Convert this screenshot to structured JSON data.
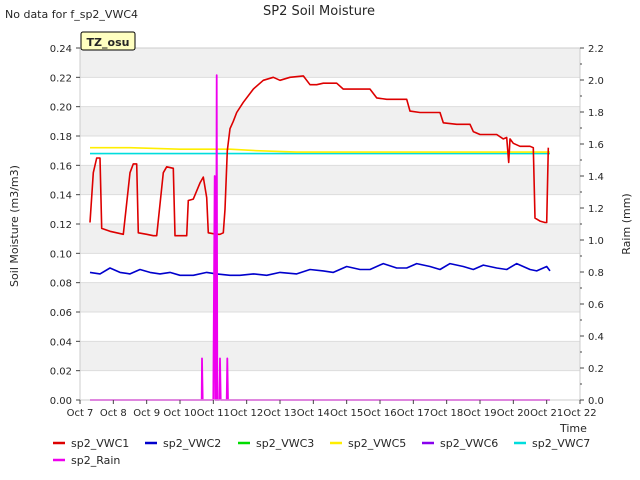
{
  "chart_data": {
    "type": "line",
    "title": "SP2 Soil Moisture",
    "note": "No data for f_sp2_VWC4",
    "badge": "TZ_osu",
    "xlabel": "Time",
    "ylabel_left": "Soil Moisture (m3/m3)",
    "ylabel_right": "Raim (mm)",
    "xlim": [
      0,
      15
    ],
    "ylim_left": [
      0,
      0.24
    ],
    "ylim_right": [
      0,
      2.2
    ],
    "x_ticks": [
      {
        "x": 0,
        "label": "Oct 7"
      },
      {
        "x": 1,
        "label": "Oct 8"
      },
      {
        "x": 2,
        "label": "Oct 9"
      },
      {
        "x": 3,
        "label": "Oct 10"
      },
      {
        "x": 4,
        "label": "Oct 11"
      },
      {
        "x": 5,
        "label": "Oct 12"
      },
      {
        "x": 6,
        "label": "Oct 13"
      },
      {
        "x": 7,
        "label": "Oct 14"
      },
      {
        "x": 8,
        "label": "Oct 15"
      },
      {
        "x": 9,
        "label": "Oct 16"
      },
      {
        "x": 10,
        "label": "Oct 17"
      },
      {
        "x": 11,
        "label": "Oct 18"
      },
      {
        "x": 12,
        "label": "Oct 19"
      },
      {
        "x": 13,
        "label": "Oct 20"
      },
      {
        "x": 14,
        "label": "Oct 21"
      },
      {
        "x": 15,
        "label": "Oct 22"
      }
    ],
    "y_ticks_left": [
      "0.00",
      "0.02",
      "0.04",
      "0.06",
      "0.08",
      "0.10",
      "0.12",
      "0.14",
      "0.16",
      "0.18",
      "0.20",
      "0.22",
      "0.24"
    ],
    "y_ticks_right": [
      "0.0",
      "0.2",
      "0.4",
      "0.6",
      "0.8",
      "1.0",
      "1.2",
      "1.4",
      "1.6",
      "1.8",
      "2.0",
      "2.2"
    ],
    "series": [
      {
        "name": "sp2_VWC1",
        "axis": "left",
        "color": "#dd0000",
        "points": [
          [
            0.3,
            0.121
          ],
          [
            0.4,
            0.155
          ],
          [
            0.5,
            0.165
          ],
          [
            0.6,
            0.165
          ],
          [
            0.65,
            0.117
          ],
          [
            0.9,
            0.115
          ],
          [
            1.1,
            0.114
          ],
          [
            1.3,
            0.113
          ],
          [
            1.5,
            0.155
          ],
          [
            1.6,
            0.161
          ],
          [
            1.7,
            0.161
          ],
          [
            1.75,
            0.114
          ],
          [
            2.0,
            0.113
          ],
          [
            2.2,
            0.112
          ],
          [
            2.3,
            0.112
          ],
          [
            2.5,
            0.155
          ],
          [
            2.6,
            0.159
          ],
          [
            2.8,
            0.158
          ],
          [
            2.85,
            0.112
          ],
          [
            3.1,
            0.112
          ],
          [
            3.2,
            0.112
          ],
          [
            3.25,
            0.136
          ],
          [
            3.4,
            0.137
          ],
          [
            3.6,
            0.148
          ],
          [
            3.7,
            0.152
          ],
          [
            3.8,
            0.138
          ],
          [
            3.85,
            0.114
          ],
          [
            4.1,
            0.113
          ],
          [
            4.2,
            0.113
          ],
          [
            4.3,
            0.114
          ],
          [
            4.35,
            0.13
          ],
          [
            4.42,
            0.17
          ],
          [
            4.5,
            0.185
          ],
          [
            4.6,
            0.19
          ],
          [
            4.7,
            0.196
          ],
          [
            4.9,
            0.203
          ],
          [
            5.2,
            0.212
          ],
          [
            5.5,
            0.218
          ],
          [
            5.8,
            0.22
          ],
          [
            6.0,
            0.218
          ],
          [
            6.3,
            0.22
          ],
          [
            6.7,
            0.221
          ],
          [
            6.9,
            0.215
          ],
          [
            7.1,
            0.215
          ],
          [
            7.3,
            0.216
          ],
          [
            7.7,
            0.216
          ],
          [
            7.9,
            0.212
          ],
          [
            8.3,
            0.212
          ],
          [
            8.7,
            0.212
          ],
          [
            8.9,
            0.206
          ],
          [
            9.2,
            0.205
          ],
          [
            9.5,
            0.205
          ],
          [
            9.8,
            0.205
          ],
          [
            9.9,
            0.197
          ],
          [
            10.2,
            0.196
          ],
          [
            10.5,
            0.196
          ],
          [
            10.8,
            0.196
          ],
          [
            10.9,
            0.189
          ],
          [
            11.3,
            0.188
          ],
          [
            11.7,
            0.188
          ],
          [
            11.8,
            0.183
          ],
          [
            12.0,
            0.181
          ],
          [
            12.3,
            0.181
          ],
          [
            12.5,
            0.181
          ],
          [
            12.7,
            0.178
          ],
          [
            12.8,
            0.179
          ],
          [
            12.86,
            0.162
          ],
          [
            12.9,
            0.178
          ],
          [
            13.0,
            0.175
          ],
          [
            13.2,
            0.173
          ],
          [
            13.5,
            0.173
          ],
          [
            13.6,
            0.172
          ],
          [
            13.65,
            0.124
          ],
          [
            13.8,
            0.122
          ],
          [
            13.95,
            0.121
          ],
          [
            14.0,
            0.121
          ],
          [
            14.05,
            0.172
          ]
        ]
      },
      {
        "name": "sp2_VWC2",
        "axis": "left",
        "color": "#0000cc",
        "points": [
          [
            0.3,
            0.087
          ],
          [
            0.6,
            0.086
          ],
          [
            0.9,
            0.09
          ],
          [
            1.2,
            0.087
          ],
          [
            1.5,
            0.086
          ],
          [
            1.8,
            0.089
          ],
          [
            2.1,
            0.087
          ],
          [
            2.4,
            0.086
          ],
          [
            2.7,
            0.087
          ],
          [
            3.0,
            0.085
          ],
          [
            3.4,
            0.085
          ],
          [
            3.8,
            0.087
          ],
          [
            4.1,
            0.086
          ],
          [
            4.5,
            0.085
          ],
          [
            4.8,
            0.085
          ],
          [
            5.2,
            0.086
          ],
          [
            5.6,
            0.085
          ],
          [
            6.0,
            0.087
          ],
          [
            6.5,
            0.086
          ],
          [
            6.9,
            0.089
          ],
          [
            7.3,
            0.088
          ],
          [
            7.6,
            0.087
          ],
          [
            8.0,
            0.091
          ],
          [
            8.4,
            0.089
          ],
          [
            8.7,
            0.089
          ],
          [
            9.1,
            0.093
          ],
          [
            9.5,
            0.09
          ],
          [
            9.8,
            0.09
          ],
          [
            10.1,
            0.093
          ],
          [
            10.5,
            0.091
          ],
          [
            10.8,
            0.089
          ],
          [
            11.1,
            0.093
          ],
          [
            11.5,
            0.091
          ],
          [
            11.8,
            0.089
          ],
          [
            12.1,
            0.092
          ],
          [
            12.5,
            0.09
          ],
          [
            12.8,
            0.089
          ],
          [
            13.1,
            0.093
          ],
          [
            13.5,
            0.089
          ],
          [
            13.7,
            0.088
          ],
          [
            14.0,
            0.091
          ],
          [
            14.1,
            0.088
          ]
        ]
      },
      {
        "name": "sp2_VWC3",
        "axis": "left",
        "color": "#00dd00",
        "points": []
      },
      {
        "name": "sp2_VWC5",
        "axis": "left",
        "color": "#ffee00",
        "points": [
          [
            0.3,
            0.172
          ],
          [
            1.5,
            0.172
          ],
          [
            3.0,
            0.171
          ],
          [
            4.5,
            0.171
          ],
          [
            5.3,
            0.17
          ],
          [
            6.5,
            0.169
          ],
          [
            8.0,
            0.169
          ],
          [
            10.0,
            0.169
          ],
          [
            12.0,
            0.169
          ],
          [
            14.1,
            0.169
          ]
        ]
      },
      {
        "name": "sp2_VWC6",
        "axis": "left",
        "color": "#8800ee",
        "points": []
      },
      {
        "name": "sp2_VWC7",
        "axis": "left",
        "color": "#00dddd",
        "points": [
          [
            0.3,
            0.168
          ],
          [
            14.1,
            0.168
          ]
        ]
      },
      {
        "name": "sp2_Rain",
        "axis": "right",
        "color": "#ee00ee",
        "points": [
          [
            0.3,
            0
          ],
          [
            3.65,
            0
          ],
          [
            3.66,
            0.26
          ],
          [
            3.68,
            0
          ],
          [
            4.0,
            0
          ],
          [
            4.04,
            1.4
          ],
          [
            4.06,
            0
          ],
          [
            4.08,
            0
          ],
          [
            4.1,
            2.03
          ],
          [
            4.12,
            0
          ],
          [
            4.18,
            0
          ],
          [
            4.2,
            0.26
          ],
          [
            4.22,
            0
          ],
          [
            4.4,
            0
          ],
          [
            4.42,
            0.26
          ],
          [
            4.44,
            0
          ],
          [
            14.1,
            0
          ]
        ]
      }
    ]
  }
}
